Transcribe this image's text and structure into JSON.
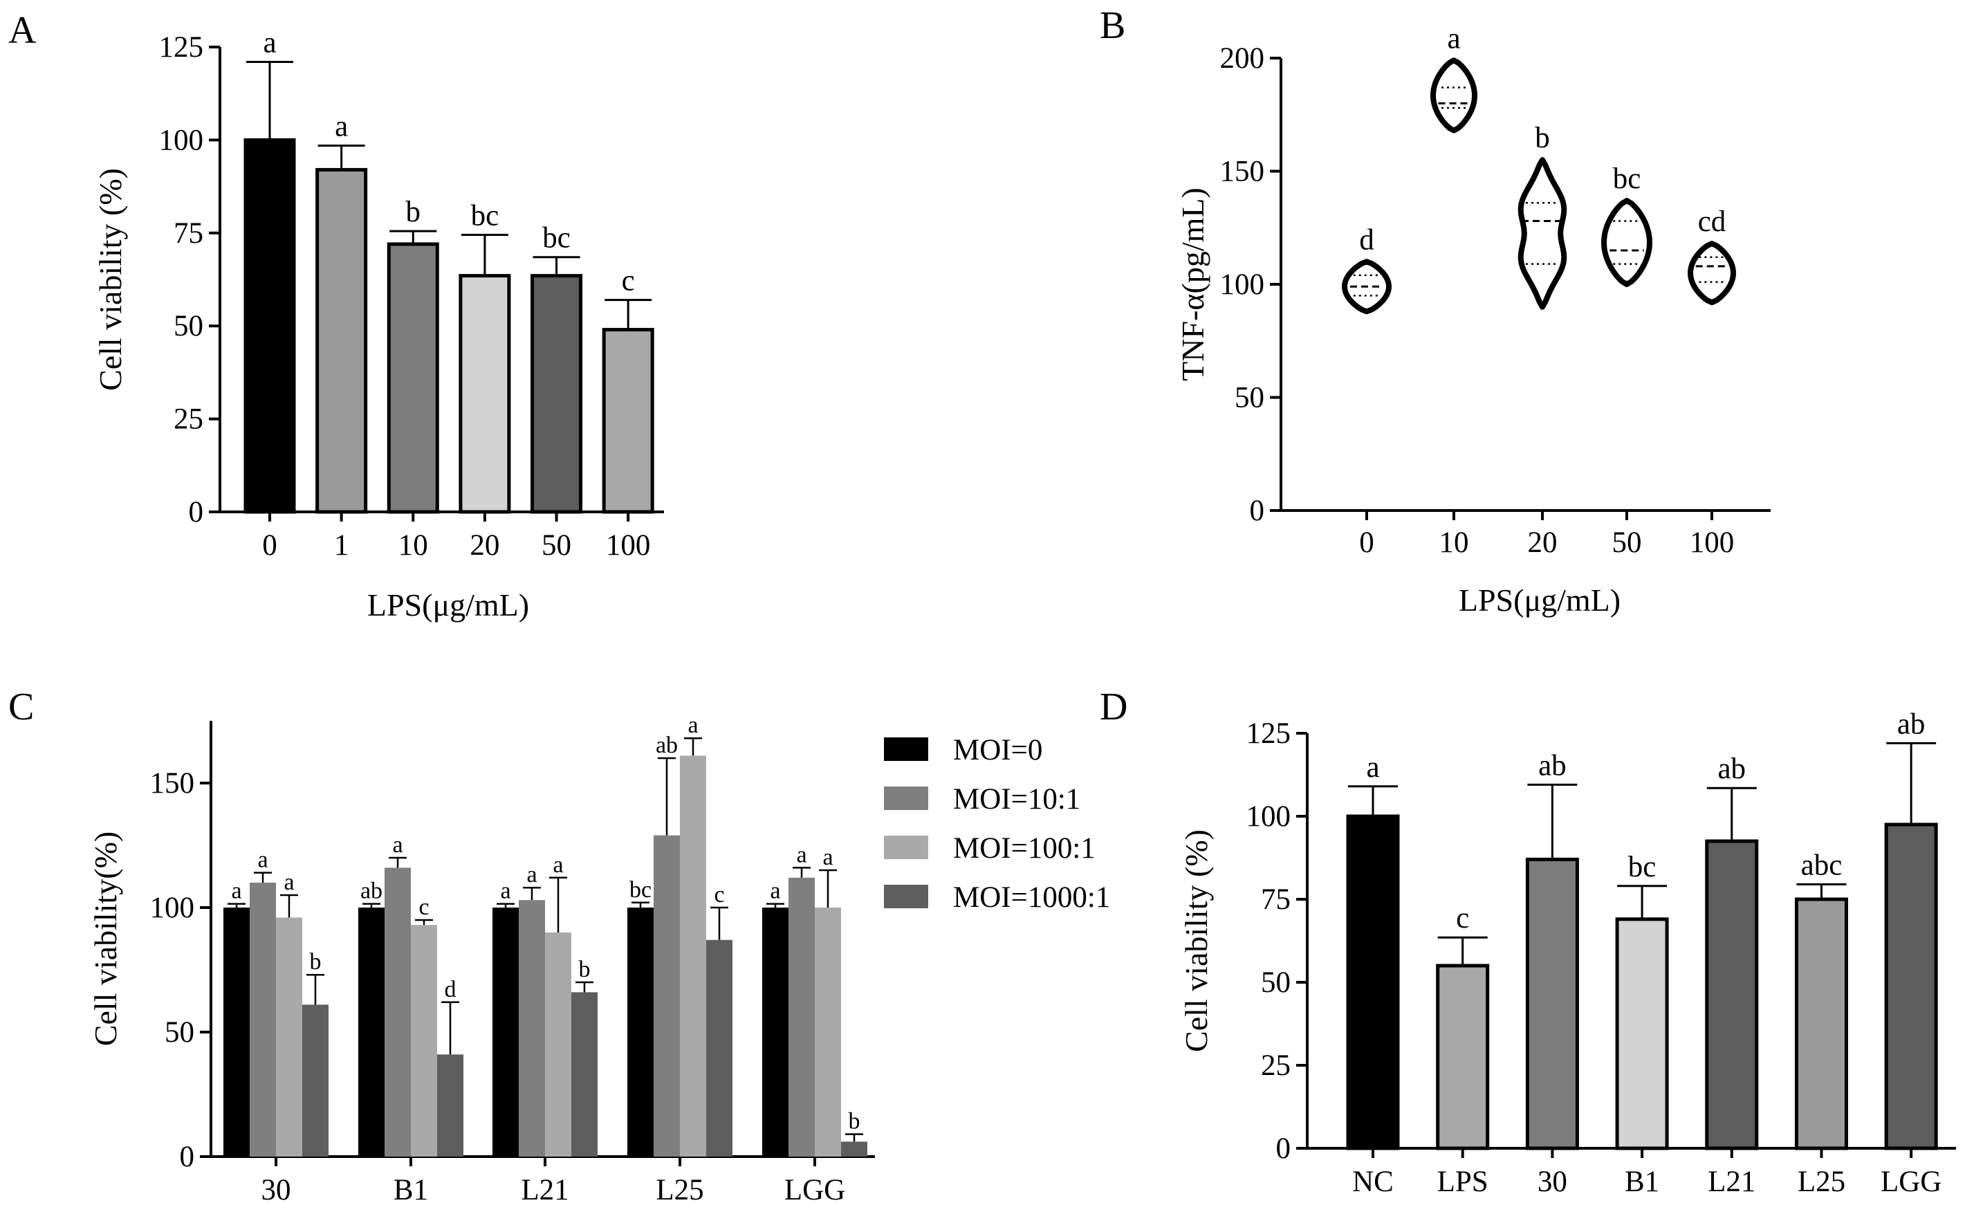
{
  "chart_data": [
    {
      "panel": "A",
      "type": "bar",
      "xlabel": "LPS(μg/mL)",
      "ylabel": "Cell viability (%)",
      "ylim": [
        0,
        125
      ],
      "yticks": [
        0,
        25,
        50,
        75,
        100,
        125
      ],
      "categories": [
        "0",
        "1",
        "10",
        "20",
        "50",
        "100"
      ],
      "values": [
        100,
        92,
        72,
        63.5,
        63.5,
        49
      ],
      "errors": [
        21,
        6.5,
        3.5,
        11,
        5,
        8
      ],
      "labels": [
        "a",
        "a",
        "b",
        "bc",
        "bc",
        "c"
      ],
      "colors": [
        "#000000",
        "#9a9a9a",
        "#7c7c7c",
        "#d3d3d3",
        "#5d5d5d",
        "#a8a8a8"
      ]
    },
    {
      "panel": "B",
      "type": "violin",
      "xlabel": "LPS(μg/mL)",
      "ylabel": "TNF-α(pg/mL)",
      "ylim": [
        0,
        200
      ],
      "yticks": [
        0,
        50,
        100,
        150,
        200
      ],
      "categories": [
        "0",
        "10",
        "20",
        "50",
        "100"
      ],
      "medians": [
        99,
        180,
        128,
        115,
        108
      ],
      "quartiles": [
        [
          95,
          104
        ],
        [
          178,
          187
        ],
        [
          109,
          136
        ],
        [
          109,
          128
        ],
        [
          101,
          112
        ]
      ],
      "ranges": [
        [
          88,
          110
        ],
        [
          168,
          199
        ],
        [
          90,
          155
        ],
        [
          100,
          137
        ],
        [
          92,
          118
        ]
      ],
      "labels": [
        "d",
        "a",
        "b",
        "bc",
        "cd"
      ]
    },
    {
      "panel": "C",
      "type": "bar",
      "ylabel": "Cell viability(%)",
      "ylim": [
        0,
        175
      ],
      "yticks": [
        0,
        50,
        100,
        150
      ],
      "categories": [
        "30",
        "B1",
        "L21",
        "L25",
        "LGG"
      ],
      "series": [
        {
          "name": "MOI=0",
          "color": "#000000",
          "values": [
            100,
            100,
            100,
            100,
            100
          ],
          "errors": [
            1.5,
            1.5,
            1.5,
            2,
            1.5
          ],
          "labels": [
            "a",
            "ab",
            "a",
            "bc",
            "a"
          ]
        },
        {
          "name": "MOI=10:1",
          "color": "#7f7f7f",
          "values": [
            110,
            116,
            103,
            129,
            112
          ],
          "errors": [
            4,
            4,
            5,
            31,
            4
          ],
          "labels": [
            "a",
            "a",
            "a",
            "ab",
            "a"
          ]
        },
        {
          "name": "MOI=100:1",
          "color": "#a9a9a9",
          "values": [
            96,
            93,
            90,
            161,
            100
          ],
          "errors": [
            9,
            2,
            22,
            7,
            15
          ],
          "labels": [
            "a",
            "c",
            "a",
            "a",
            "a"
          ]
        },
        {
          "name": "MOI=1000:1",
          "color": "#5e5e5e",
          "values": [
            61,
            41,
            66,
            87,
            6
          ],
          "errors": [
            12,
            21,
            4,
            13,
            3
          ],
          "labels": [
            "b",
            "d",
            "b",
            "c",
            "b"
          ]
        }
      ]
    },
    {
      "panel": "D",
      "type": "bar",
      "ylabel": "Cell viability (%)",
      "ylim": [
        0,
        125
      ],
      "yticks": [
        0,
        25,
        50,
        75,
        100,
        125
      ],
      "categories": [
        "NC",
        "LPS",
        "30",
        "B1",
        "L21",
        "L25",
        "LGG"
      ],
      "values": [
        100,
        55,
        87,
        69,
        92.5,
        75,
        97.5
      ],
      "errors": [
        9,
        8.5,
        22.5,
        10,
        16,
        4.5,
        24.5
      ],
      "labels": [
        "a",
        "c",
        "ab",
        "bc",
        "ab",
        "abc",
        "ab"
      ],
      "colors": [
        "#000000",
        "#a8a8a8",
        "#7c7c7c",
        "#d3d3d3",
        "#5d5d5d",
        "#9a9a9a",
        "#5d5d5d"
      ]
    }
  ]
}
